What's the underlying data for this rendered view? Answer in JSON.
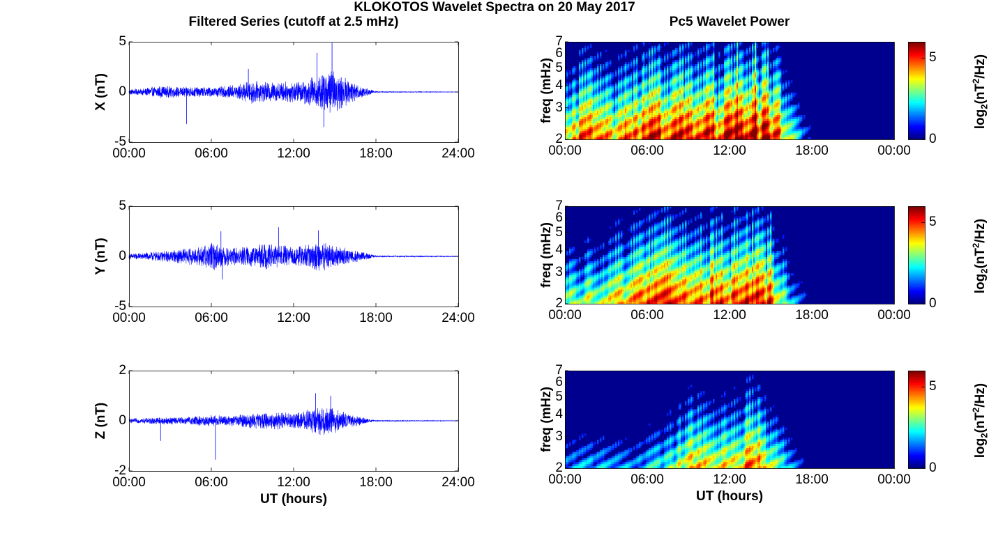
{
  "figure": {
    "title": "KLOKOTOS Wavelet Spectra on 20 May 2017",
    "left_title": "Filtered Series (cutoff at 2.5 mHz)",
    "right_title": "Pc5 Wavelet Power",
    "xlabel": "UT (hours)",
    "colorbar_label_prefix": "log",
    "colorbar_label_sub": "2",
    "colorbar_label_mid": "(nT",
    "colorbar_label_sup": "2",
    "colorbar_label_suffix": "/Hz)"
  },
  "colors": {
    "series": "#0000ff",
    "spectrum_background": "#00008f",
    "axis": "#000000"
  },
  "chart_data": [
    {
      "type": "line",
      "component": "X",
      "ylabel": "X (nT)",
      "xlim": [
        0,
        24
      ],
      "ylim": [
        -5,
        5
      ],
      "x_ticks": [
        "00:00",
        "06:00",
        "12:00",
        "18:00",
        "24:00"
      ],
      "y_ticks": [
        "5",
        "0",
        "-5"
      ],
      "envelope": {
        "x_hours": [
          0,
          1,
          2,
          3,
          4,
          5,
          6,
          7,
          8,
          9,
          10,
          11,
          12,
          13,
          14,
          15,
          16,
          17,
          18,
          24
        ],
        "amplitude_nT": [
          0.3,
          0.35,
          0.6,
          0.6,
          0.55,
          0.55,
          0.5,
          0.6,
          0.8,
          1.2,
          1.0,
          1.0,
          1.1,
          1.3,
          2.0,
          2.2,
          1.2,
          0.6,
          0.05,
          0.02
        ]
      },
      "peaks": [
        {
          "x_hours": 4.2,
          "value_nT": -3.2
        },
        {
          "x_hours": 8.7,
          "value_nT": 2.3
        },
        {
          "x_hours": 13.7,
          "value_nT": 3.9
        },
        {
          "x_hours": 14.2,
          "value_nT": -3.5
        },
        {
          "x_hours": 14.8,
          "value_nT": 4.9
        }
      ]
    },
    {
      "type": "line",
      "component": "Y",
      "ylabel": "Y (nT)",
      "xlim": [
        0,
        24
      ],
      "ylim": [
        -5,
        5
      ],
      "x_ticks": [
        "00:00",
        "06:00",
        "12:00",
        "18:00",
        "24:00"
      ],
      "y_ticks": [
        "5",
        "0",
        "-5"
      ],
      "envelope": {
        "x_hours": [
          0,
          1,
          2,
          3,
          4,
          5,
          6,
          7,
          8,
          9,
          10,
          11,
          12,
          13,
          14,
          15,
          16,
          17,
          18,
          24
        ],
        "amplitude_nT": [
          0.3,
          0.35,
          0.5,
          0.6,
          0.8,
          0.9,
          1.5,
          1.0,
          0.9,
          1.1,
          1.3,
          1.2,
          0.9,
          1.2,
          1.6,
          1.1,
          0.8,
          0.5,
          0.08,
          0.05
        ]
      },
      "peaks": [
        {
          "x_hours": 6.7,
          "value_nT": 2.5
        },
        {
          "x_hours": 6.8,
          "value_nT": -2.3
        },
        {
          "x_hours": 10.9,
          "value_nT": 2.9
        },
        {
          "x_hours": 13.8,
          "value_nT": 2.6
        }
      ]
    },
    {
      "type": "line",
      "component": "Z",
      "ylabel": "Z (nT)",
      "xlim": [
        0,
        24
      ],
      "ylim": [
        -2,
        2
      ],
      "x_ticks": [
        "00:00",
        "06:00",
        "12:00",
        "18:00",
        "24:00"
      ],
      "y_ticks": [
        "2",
        "0",
        "-2"
      ],
      "envelope": {
        "x_hours": [
          0,
          1,
          2,
          3,
          4,
          5,
          6,
          7,
          8,
          9,
          10,
          11,
          12,
          13,
          14,
          15,
          16,
          17,
          18,
          24
        ],
        "amplitude_nT": [
          0.1,
          0.1,
          0.15,
          0.15,
          0.15,
          0.2,
          0.25,
          0.2,
          0.25,
          0.35,
          0.35,
          0.35,
          0.3,
          0.45,
          0.6,
          0.5,
          0.3,
          0.15,
          0.02,
          0.01
        ]
      },
      "peaks": [
        {
          "x_hours": 2.3,
          "value_nT": -0.8
        },
        {
          "x_hours": 6.3,
          "value_nT": -1.55
        },
        {
          "x_hours": 13.6,
          "value_nT": 1.1
        },
        {
          "x_hours": 14.7,
          "value_nT": 1.0
        }
      ]
    },
    {
      "type": "heatmap",
      "component": "X",
      "ylabel": "freq (mHz)",
      "xlim": [
        0,
        24
      ],
      "ylim_mHz": [
        2,
        7
      ],
      "y_scale": "log",
      "x_ticks": [
        "00:00",
        "06:00",
        "12:00",
        "18:00",
        "00:00"
      ],
      "y_ticks": [
        "7",
        "6",
        "5",
        "4",
        "3",
        "2"
      ],
      "colorbar_range": [
        0,
        6
      ],
      "colorbar_ticks": [
        "5",
        "0"
      ],
      "activity": {
        "x_hours": [
          0,
          1,
          2,
          3,
          4,
          5,
          6,
          7,
          8,
          9,
          10,
          11,
          12,
          13,
          14,
          15,
          16,
          17,
          18,
          24
        ],
        "level": [
          0.6,
          0.7,
          0.75,
          0.65,
          0.7,
          0.8,
          0.8,
          0.85,
          0.85,
          0.9,
          0.9,
          0.85,
          0.9,
          1.0,
          1.0,
          0.95,
          0.6,
          0.25,
          0.0,
          0.0
        ]
      }
    },
    {
      "type": "heatmap",
      "component": "Y",
      "ylabel": "freq (mHz)",
      "xlim": [
        0,
        24
      ],
      "ylim_mHz": [
        2,
        7
      ],
      "y_scale": "log",
      "x_ticks": [
        "00:00",
        "06:00",
        "12:00",
        "18:00",
        "00:00"
      ],
      "y_ticks": [
        "7",
        "6",
        "5",
        "4",
        "3",
        "2"
      ],
      "colorbar_range": [
        0,
        6
      ],
      "colorbar_ticks": [
        "5",
        "0"
      ],
      "activity": {
        "x_hours": [
          0,
          1,
          2,
          3,
          4,
          5,
          6,
          7,
          8,
          9,
          10,
          11,
          12,
          13,
          14,
          15,
          16,
          17,
          18,
          24
        ],
        "level": [
          0.45,
          0.5,
          0.5,
          0.5,
          0.65,
          0.75,
          0.85,
          0.85,
          0.8,
          0.85,
          0.85,
          0.8,
          0.75,
          0.9,
          0.95,
          0.85,
          0.45,
          0.1,
          0.0,
          0.0
        ]
      }
    },
    {
      "type": "heatmap",
      "component": "Z",
      "ylabel": "freq (mHz)",
      "xlabel": "UT (hours)",
      "xlim": [
        0,
        24
      ],
      "ylim_mHz": [
        2,
        7
      ],
      "y_scale": "log",
      "x_ticks": [
        "00:00",
        "06:00",
        "12:00",
        "18:00",
        "00:00"
      ],
      "y_ticks": [
        "7",
        "6",
        "5",
        "4",
        "3",
        "2"
      ],
      "colorbar_range": [
        0,
        6
      ],
      "colorbar_ticks": [
        "5",
        "0"
      ],
      "activity": {
        "x_hours": [
          0,
          1,
          2,
          3,
          4,
          5,
          6,
          7,
          8,
          9,
          10,
          11,
          12,
          13,
          14,
          15,
          16,
          17,
          18,
          24
        ],
        "level": [
          0.15,
          0.2,
          0.25,
          0.2,
          0.2,
          0.15,
          0.25,
          0.35,
          0.45,
          0.6,
          0.6,
          0.6,
          0.55,
          0.7,
          0.75,
          0.6,
          0.3,
          0.05,
          0.0,
          0.0
        ]
      }
    }
  ]
}
